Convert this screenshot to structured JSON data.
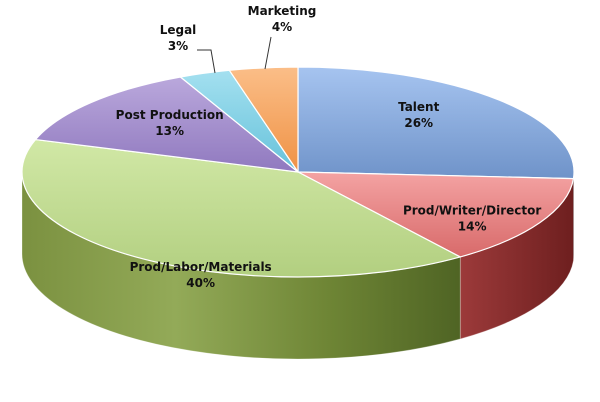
{
  "chart_data": {
    "type": "pie",
    "style": "3d",
    "slices": [
      {
        "name": "Talent",
        "value": 26,
        "value_label": "26%",
        "color": "#8FB3E6"
      },
      {
        "name": "Prod/Writer/Director",
        "value": 14,
        "value_label": "14%",
        "color": "#EE8A8A"
      },
      {
        "name": "Prod/Labor/Materials",
        "value": 40,
        "value_label": "40%",
        "color": "#C3DD93"
      },
      {
        "name": "Post Production",
        "value": 13,
        "value_label": "13%",
        "color": "#A892CE"
      },
      {
        "name": "Legal",
        "value": 3,
        "value_label": "3%",
        "color": "#86D2E6"
      },
      {
        "name": "Marketing",
        "value": 4,
        "value_label": "4%",
        "color": "#F8A865"
      }
    ],
    "legend": "none"
  }
}
